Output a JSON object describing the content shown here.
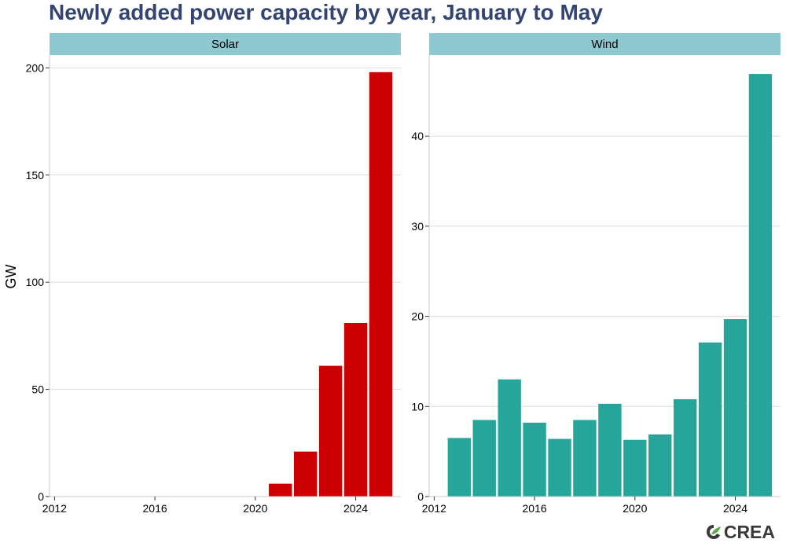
{
  "title": "Newly added power capacity by year, January to May",
  "ylabel": "GW",
  "logo": {
    "text": "CREA",
    "icon": "crea-leaf-icon"
  },
  "colors": {
    "solar": "#cc0000",
    "wind": "#26a69a",
    "strip": "#8ec9d2",
    "title": "#344470"
  },
  "chart_data": [
    {
      "type": "bar",
      "panel": "Solar",
      "color": "#cc0000",
      "x": [
        2021,
        2022,
        2023,
        2024,
        2025
      ],
      "values": [
        6,
        21,
        61,
        81,
        198
      ],
      "xlim": [
        2011.8,
        2025.8
      ],
      "ylim": [
        0,
        206
      ],
      "xticks": [
        2012,
        2016,
        2020,
        2024
      ],
      "yticks": [
        0,
        50,
        100,
        150,
        200
      ],
      "ylabel": "GW"
    },
    {
      "type": "bar",
      "panel": "Wind",
      "color": "#26a69a",
      "x": [
        2013,
        2014,
        2015,
        2016,
        2017,
        2018,
        2019,
        2020,
        2021,
        2022,
        2023,
        2024,
        2025
      ],
      "values": [
        6.5,
        8.5,
        13.0,
        8.2,
        6.4,
        8.5,
        10.3,
        6.3,
        6.9,
        10.8,
        17.1,
        19.7,
        46.9
      ],
      "xlim": [
        2011.8,
        2025.8
      ],
      "ylim": [
        0,
        49
      ],
      "xticks": [
        2012,
        2016,
        2020,
        2024
      ],
      "yticks": [
        0,
        10,
        20,
        30,
        40
      ]
    }
  ]
}
